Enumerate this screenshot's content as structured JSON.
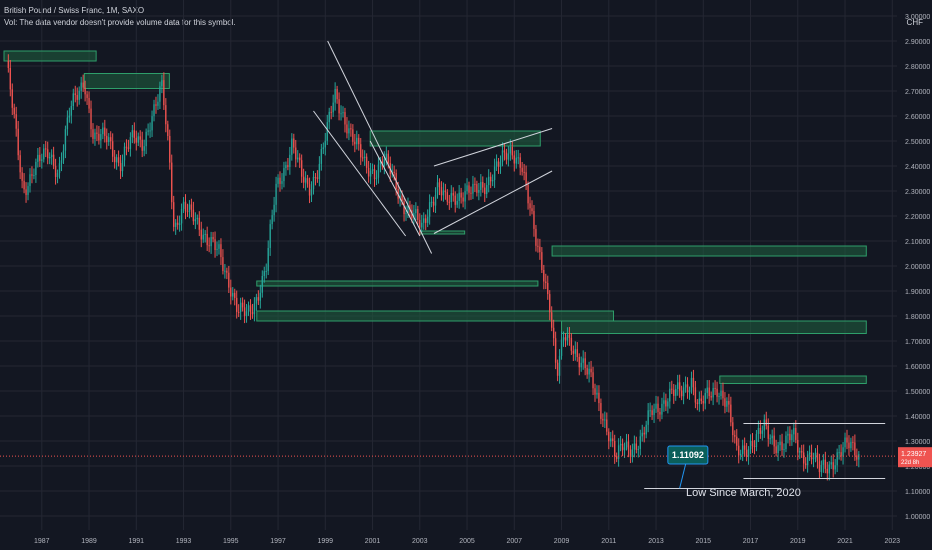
{
  "header": {
    "title": "British Pound / Swiss Franc, 1M, SAXO",
    "volume_note": "Vol: The data vendor doesn't provide volume data for this symbol.",
    "currency": "CHF"
  },
  "colors": {
    "background": "#131722",
    "grid": "#242733",
    "up": "#26a69a",
    "down": "#ef5350",
    "zone_fill": "#1e5c3e",
    "zone_border": "#2e9e6a",
    "trendline": "#d1d4dc",
    "axis_text": "#b2b5be",
    "price_line": "#ef5350",
    "callout": "#0b5f5a"
  },
  "chart_data": {
    "type": "candlestick",
    "symbol": "British Pound / Swiss Franc",
    "interval": "1M",
    "exchange": "SAXO",
    "ylim": [
      1.0,
      3.0
    ],
    "xlim": [
      1985.9,
      2023.7
    ],
    "y_ticks": [
      "1.00000",
      "1.10000",
      "1.20000",
      "1.30000",
      "1.40000",
      "1.50000",
      "1.60000",
      "1.70000",
      "1.80000",
      "1.90000",
      "2.00000",
      "2.10000",
      "2.20000",
      "2.30000",
      "2.40000",
      "2.50000",
      "2.60000",
      "2.70000",
      "2.80000",
      "2.90000",
      "3.00000"
    ],
    "x_ticks": [
      "1987",
      "1989",
      "1991",
      "1993",
      "1995",
      "1997",
      "1999",
      "2001",
      "2003",
      "2005",
      "2007",
      "2009",
      "2011",
      "2013",
      "2015",
      "2017",
      "2019",
      "2021",
      "2023"
    ],
    "price_path": [
      [
        1986.0,
        2.82
      ],
      [
        1986.3,
        2.6
      ],
      [
        1986.7,
        2.3
      ],
      [
        1987.2,
        2.4
      ],
      [
        1987.8,
        2.45
      ],
      [
        1988.2,
        2.38
      ],
      [
        1988.7,
        2.62
      ],
      [
        1989.3,
        2.75
      ],
      [
        1989.7,
        2.5
      ],
      [
        1990.3,
        2.52
      ],
      [
        1990.8,
        2.4
      ],
      [
        1991.4,
        2.52
      ],
      [
        1991.8,
        2.5
      ],
      [
        1992.3,
        2.62
      ],
      [
        1992.6,
        2.72
      ],
      [
        1992.9,
        2.45
      ],
      [
        1993.1,
        2.15
      ],
      [
        1993.5,
        2.22
      ],
      [
        1994.0,
        2.2
      ],
      [
        1994.5,
        2.1
      ],
      [
        1995.0,
        2.05
      ],
      [
        1995.4,
        1.95
      ],
      [
        1995.8,
        1.82
      ],
      [
        1996.2,
        1.8
      ],
      [
        1996.5,
        1.85
      ],
      [
        1997.0,
        2.0
      ],
      [
        1997.4,
        2.3
      ],
      [
        1997.8,
        2.4
      ],
      [
        1998.1,
        2.5
      ],
      [
        1998.5,
        2.35
      ],
      [
        1998.8,
        2.3
      ],
      [
        1999.2,
        2.4
      ],
      [
        1999.6,
        2.55
      ],
      [
        1999.9,
        2.68
      ],
      [
        2000.3,
        2.6
      ],
      [
        2000.7,
        2.5
      ],
      [
        2001.2,
        2.4
      ],
      [
        2001.6,
        2.38
      ],
      [
        2002.0,
        2.42
      ],
      [
        2002.4,
        2.35
      ],
      [
        2002.8,
        2.25
      ],
      [
        2003.2,
        2.2
      ],
      [
        2003.6,
        2.15
      ],
      [
        2003.9,
        2.25
      ],
      [
        2004.3,
        2.32
      ],
      [
        2004.6,
        2.25
      ],
      [
        2005.0,
        2.28
      ],
      [
        2005.4,
        2.3
      ],
      [
        2005.8,
        2.29
      ],
      [
        2006.2,
        2.32
      ],
      [
        2006.6,
        2.38
      ],
      [
        2007.0,
        2.42
      ],
      [
        2007.4,
        2.46
      ],
      [
        2007.8,
        2.42
      ],
      [
        2008.1,
        2.25
      ],
      [
        2008.4,
        2.1
      ],
      [
        2008.7,
        2.0
      ],
      [
        2009.0,
        1.85
      ],
      [
        2009.3,
        1.55
      ],
      [
        2009.6,
        1.72
      ],
      [
        2009.9,
        1.7
      ],
      [
        2010.3,
        1.62
      ],
      [
        2010.7,
        1.55
      ],
      [
        2011.1,
        1.45
      ],
      [
        2011.5,
        1.33
      ],
      [
        2011.8,
        1.22
      ],
      [
        2012.1,
        1.28
      ],
      [
        2012.5,
        1.28
      ],
      [
        2012.9,
        1.3
      ],
      [
        2013.3,
        1.42
      ],
      [
        2013.7,
        1.45
      ],
      [
        2014.1,
        1.48
      ],
      [
        2014.6,
        1.5
      ],
      [
        2015.0,
        1.55
      ],
      [
        2015.3,
        1.43
      ],
      [
        2015.7,
        1.48
      ],
      [
        2016.1,
        1.52
      ],
      [
        2016.5,
        1.45
      ],
      [
        2016.9,
        1.25
      ],
      [
        2017.3,
        1.28
      ],
      [
        2017.7,
        1.3
      ],
      [
        2018.1,
        1.35
      ],
      [
        2018.5,
        1.3
      ],
      [
        2018.9,
        1.28
      ],
      [
        2019.3,
        1.32
      ],
      [
        2019.7,
        1.24
      ],
      [
        2020.1,
        1.25
      ],
      [
        2020.4,
        1.18
      ],
      [
        2020.8,
        1.2
      ],
      [
        2021.2,
        1.25
      ],
      [
        2021.6,
        1.28
      ],
      [
        2021.9,
        1.26
      ],
      [
        2022.1,
        1.24
      ]
    ],
    "annotations": {
      "current_price": "1.23927",
      "countdown": "22d 8h",
      "low_callout": "1.11092",
      "low_label": "Low Since March, 2020"
    },
    "supply_demand_zones": [
      {
        "x0": 1985.9,
        "x1": 1989.8,
        "y0": 2.82,
        "y1": 2.86
      },
      {
        "x0": 1989.3,
        "x1": 1992.9,
        "y0": 2.71,
        "y1": 2.77
      },
      {
        "x0": 2001.4,
        "x1": 2008.6,
        "y0": 2.48,
        "y1": 2.54
      },
      {
        "x0": 2003.5,
        "x1": 2005.4,
        "y0": 2.13,
        "y1": 2.14
      },
      {
        "x0": 2009.1,
        "x1": 2022.4,
        "y0": 2.04,
        "y1": 2.08
      },
      {
        "x0": 1996.6,
        "x1": 2008.5,
        "y0": 1.92,
        "y1": 1.94
      },
      {
        "x0": 1996.6,
        "x1": 2011.7,
        "y0": 1.78,
        "y1": 1.82
      },
      {
        "x0": 2009.5,
        "x1": 2022.4,
        "y0": 1.73,
        "y1": 1.78
      },
      {
        "x0": 2016.2,
        "x1": 2022.4,
        "y0": 1.53,
        "y1": 1.56
      }
    ],
    "trendlines": [
      {
        "x0": 1999.6,
        "y0": 2.9,
        "x1": 2004.0,
        "y1": 2.05
      },
      {
        "x0": 1999.0,
        "y0": 2.62,
        "x1": 2002.9,
        "y1": 2.12
      },
      {
        "x0": 2001.4,
        "y0": 2.5,
        "x1": 2003.5,
        "y1": 2.12
      },
      {
        "x0": 2004.1,
        "y0": 2.4,
        "x1": 2009.1,
        "y1": 2.55
      },
      {
        "x0": 2004.1,
        "y0": 2.13,
        "x1": 2009.1,
        "y1": 2.38
      },
      {
        "x0": 2017.2,
        "y0": 1.37,
        "x1": 2023.2,
        "y1": 1.37
      },
      {
        "x0": 2017.2,
        "y0": 1.15,
        "x1": 2023.2,
        "y1": 1.15
      },
      {
        "x0": 2013.0,
        "y0": 1.11,
        "x1": 2018.8,
        "y1": 1.11
      }
    ]
  }
}
